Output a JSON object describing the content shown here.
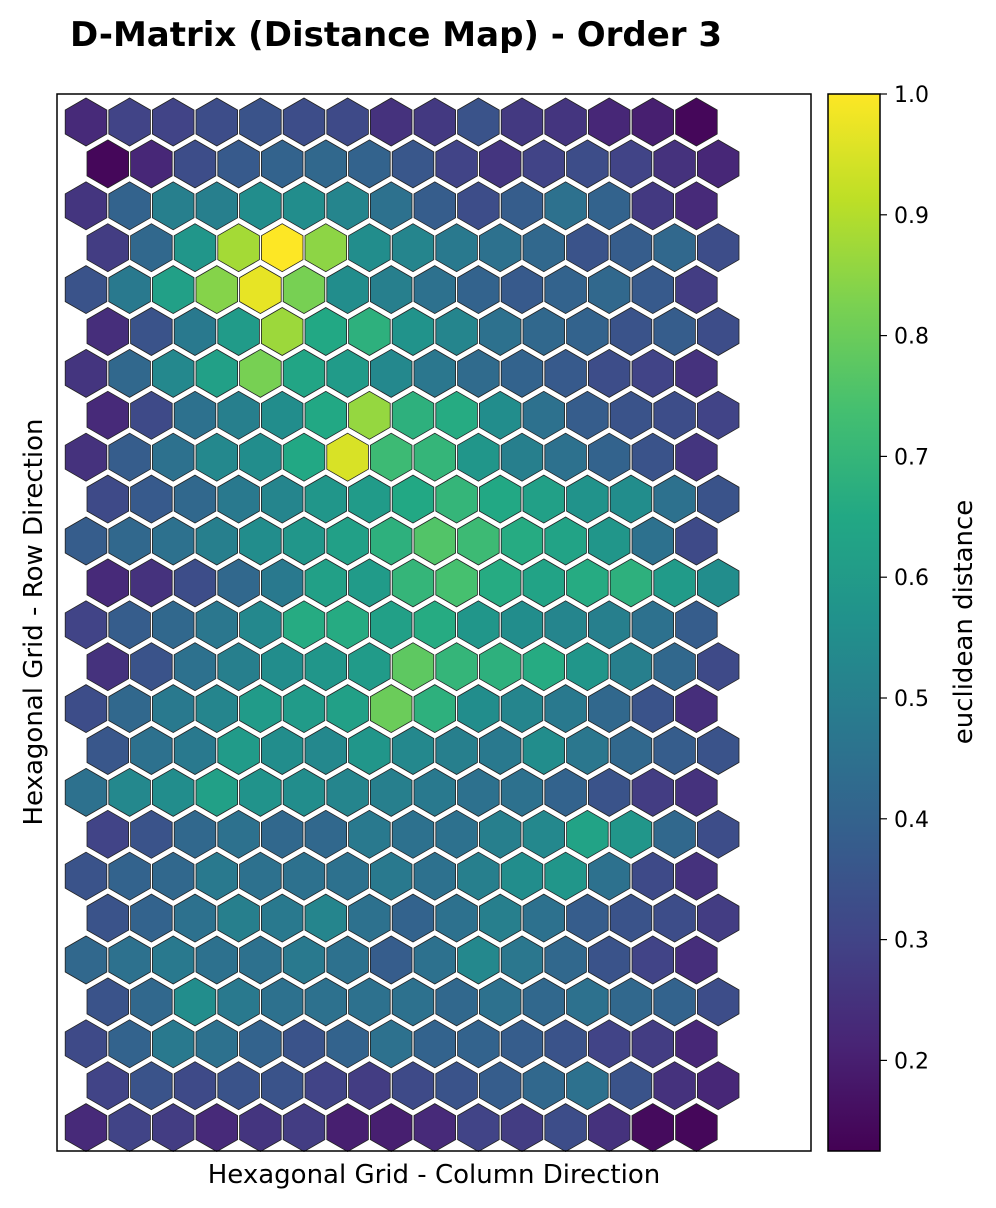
{
  "chart_data": {
    "type": "heatmap",
    "title": "D-Matrix (Distance Map) - Order 3",
    "xlabel": "Hexagonal Grid - Column Direction",
    "ylabel": "Hexagonal Grid - Row Direction",
    "colorbar_label": "euclidean distance",
    "colormap": "viridis",
    "vmin": 0.125,
    "vmax": 1.0,
    "colorbar_ticks": [
      0.2,
      0.3,
      0.4,
      0.5,
      0.6,
      0.7,
      0.8,
      0.9,
      1.0
    ],
    "colorbar_tick_labels": [
      "0.2",
      "0.3",
      "0.4",
      "0.5",
      "0.6",
      "0.7",
      "0.8",
      "0.9",
      "1.0"
    ],
    "grid": "hexagonal, odd rows offset right",
    "rows": 25,
    "cols": 15,
    "values": [
      [
        0.23,
        0.3,
        0.3,
        0.33,
        0.35,
        0.33,
        0.32,
        0.25,
        0.27,
        0.35,
        0.27,
        0.26,
        0.22,
        0.2,
        0.14
      ],
      [
        0.14,
        0.22,
        0.33,
        0.37,
        0.4,
        0.42,
        0.4,
        0.36,
        0.3,
        0.26,
        0.3,
        0.33,
        0.3,
        0.25,
        0.22
      ],
      [
        0.26,
        0.4,
        0.5,
        0.5,
        0.55,
        0.55,
        0.52,
        0.45,
        0.38,
        0.33,
        0.38,
        0.45,
        0.4,
        0.27,
        0.23
      ],
      [
        0.28,
        0.42,
        0.58,
        0.88,
        1.0,
        0.85,
        0.55,
        0.52,
        0.48,
        0.45,
        0.42,
        0.35,
        0.38,
        0.42,
        0.33
      ],
      [
        0.35,
        0.48,
        0.62,
        0.84,
        0.97,
        0.82,
        0.55,
        0.5,
        0.45,
        0.4,
        0.37,
        0.4,
        0.42,
        0.37,
        0.28
      ],
      [
        0.24,
        0.35,
        0.48,
        0.6,
        0.87,
        0.65,
        0.68,
        0.57,
        0.52,
        0.45,
        0.42,
        0.4,
        0.35,
        0.38,
        0.33
      ],
      [
        0.26,
        0.42,
        0.53,
        0.62,
        0.82,
        0.64,
        0.6,
        0.53,
        0.47,
        0.43,
        0.4,
        0.37,
        0.33,
        0.3,
        0.25
      ],
      [
        0.23,
        0.32,
        0.45,
        0.5,
        0.55,
        0.65,
        0.86,
        0.68,
        0.66,
        0.55,
        0.45,
        0.38,
        0.35,
        0.33,
        0.3
      ],
      [
        0.25,
        0.38,
        0.45,
        0.53,
        0.55,
        0.65,
        0.95,
        0.72,
        0.7,
        0.58,
        0.5,
        0.45,
        0.4,
        0.35,
        0.26
      ],
      [
        0.32,
        0.37,
        0.42,
        0.48,
        0.52,
        0.58,
        0.6,
        0.65,
        0.7,
        0.65,
        0.62,
        0.57,
        0.55,
        0.45,
        0.35
      ],
      [
        0.38,
        0.42,
        0.45,
        0.5,
        0.55,
        0.58,
        0.62,
        0.68,
        0.76,
        0.72,
        0.66,
        0.63,
        0.58,
        0.45,
        0.32
      ],
      [
        0.23,
        0.25,
        0.33,
        0.42,
        0.48,
        0.62,
        0.6,
        0.7,
        0.74,
        0.66,
        0.63,
        0.66,
        0.68,
        0.6,
        0.55
      ],
      [
        0.3,
        0.38,
        0.42,
        0.47,
        0.53,
        0.66,
        0.66,
        0.62,
        0.66,
        0.58,
        0.55,
        0.52,
        0.5,
        0.45,
        0.38
      ],
      [
        0.25,
        0.35,
        0.45,
        0.5,
        0.55,
        0.58,
        0.6,
        0.78,
        0.7,
        0.68,
        0.66,
        0.58,
        0.5,
        0.42,
        0.32
      ],
      [
        0.33,
        0.42,
        0.48,
        0.52,
        0.6,
        0.6,
        0.62,
        0.8,
        0.68,
        0.55,
        0.52,
        0.48,
        0.42,
        0.35,
        0.24
      ],
      [
        0.36,
        0.45,
        0.48,
        0.6,
        0.55,
        0.53,
        0.58,
        0.53,
        0.5,
        0.48,
        0.55,
        0.47,
        0.42,
        0.38,
        0.35
      ],
      [
        0.45,
        0.53,
        0.55,
        0.62,
        0.57,
        0.55,
        0.52,
        0.5,
        0.48,
        0.45,
        0.45,
        0.4,
        0.35,
        0.28,
        0.25
      ],
      [
        0.3,
        0.35,
        0.42,
        0.45,
        0.42,
        0.42,
        0.48,
        0.45,
        0.45,
        0.5,
        0.53,
        0.63,
        0.58,
        0.42,
        0.33
      ],
      [
        0.35,
        0.4,
        0.42,
        0.48,
        0.45,
        0.45,
        0.45,
        0.48,
        0.45,
        0.5,
        0.55,
        0.58,
        0.45,
        0.32,
        0.25
      ],
      [
        0.35,
        0.4,
        0.45,
        0.5,
        0.48,
        0.52,
        0.45,
        0.4,
        0.45,
        0.5,
        0.45,
        0.38,
        0.35,
        0.33,
        0.28
      ],
      [
        0.42,
        0.45,
        0.48,
        0.45,
        0.45,
        0.48,
        0.45,
        0.38,
        0.45,
        0.53,
        0.47,
        0.42,
        0.35,
        0.3,
        0.24
      ],
      [
        0.35,
        0.42,
        0.55,
        0.48,
        0.45,
        0.45,
        0.45,
        0.45,
        0.42,
        0.45,
        0.42,
        0.45,
        0.42,
        0.4,
        0.33
      ],
      [
        0.32,
        0.4,
        0.48,
        0.45,
        0.4,
        0.35,
        0.4,
        0.45,
        0.4,
        0.4,
        0.38,
        0.35,
        0.3,
        0.28,
        0.22
      ],
      [
        0.3,
        0.35,
        0.32,
        0.35,
        0.35,
        0.3,
        0.28,
        0.32,
        0.35,
        0.38,
        0.42,
        0.45,
        0.35,
        0.25,
        0.22
      ],
      [
        0.23,
        0.3,
        0.28,
        0.23,
        0.26,
        0.28,
        0.2,
        0.2,
        0.23,
        0.3,
        0.28,
        0.33,
        0.25,
        0.15,
        0.14
      ]
    ]
  }
}
